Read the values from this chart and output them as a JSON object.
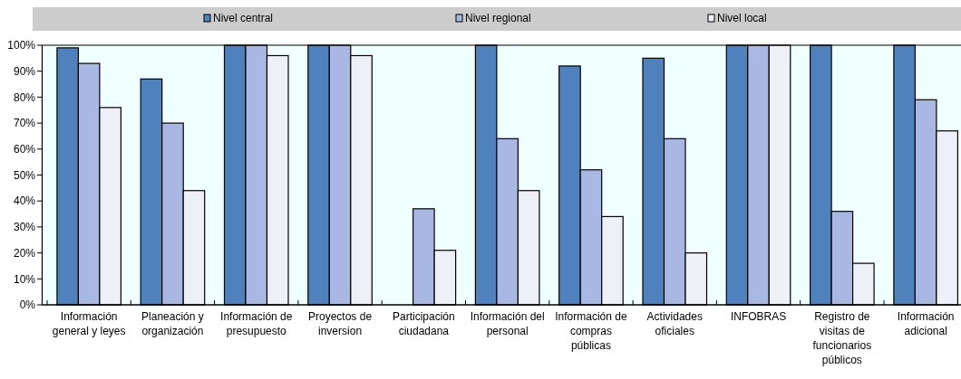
{
  "chart_data": {
    "type": "bar",
    "categories": [
      "Información general y leyes",
      "Planeación y organización",
      "Información de presupuesto",
      "Proyectos de inversion",
      "Participación ciudadana",
      "Información del personal",
      "Información de compras públicas",
      "Actividades oficiales",
      "INFOBRAS",
      "Registro de visitas de funcionarios públicos",
      "Información adicional"
    ],
    "series": [
      {
        "name": "Nivel central",
        "color": "#4f81bd",
        "values": [
          99,
          87,
          100,
          100,
          0,
          100,
          92,
          95,
          100,
          100,
          100
        ]
      },
      {
        "name": "Nivel regional",
        "color": "#a8b8e2",
        "values": [
          93,
          70,
          100,
          100,
          37,
          64,
          52,
          64,
          100,
          36,
          79
        ]
      },
      {
        "name": "Nivel local",
        "color": "#eef0f8",
        "values": [
          76,
          44,
          96,
          96,
          21,
          44,
          34,
          20,
          100,
          16,
          67
        ]
      }
    ],
    "ylim": [
      0,
      100
    ],
    "yticks": [
      {
        "value": 0,
        "label": "0%"
      },
      {
        "value": 10,
        "label": "10%"
      },
      {
        "value": 20,
        "label": "20%"
      },
      {
        "value": 30,
        "label": "30%"
      },
      {
        "value": 40,
        "label": "40%"
      },
      {
        "value": 50,
        "label": "50%"
      },
      {
        "value": 60,
        "label": "60%"
      },
      {
        "value": 70,
        "label": "70%"
      },
      {
        "value": 80,
        "label": "80%"
      },
      {
        "value": 90,
        "label": "90%"
      },
      {
        "value": 100,
        "label": "100%"
      }
    ],
    "grid": false,
    "legend": "top"
  }
}
